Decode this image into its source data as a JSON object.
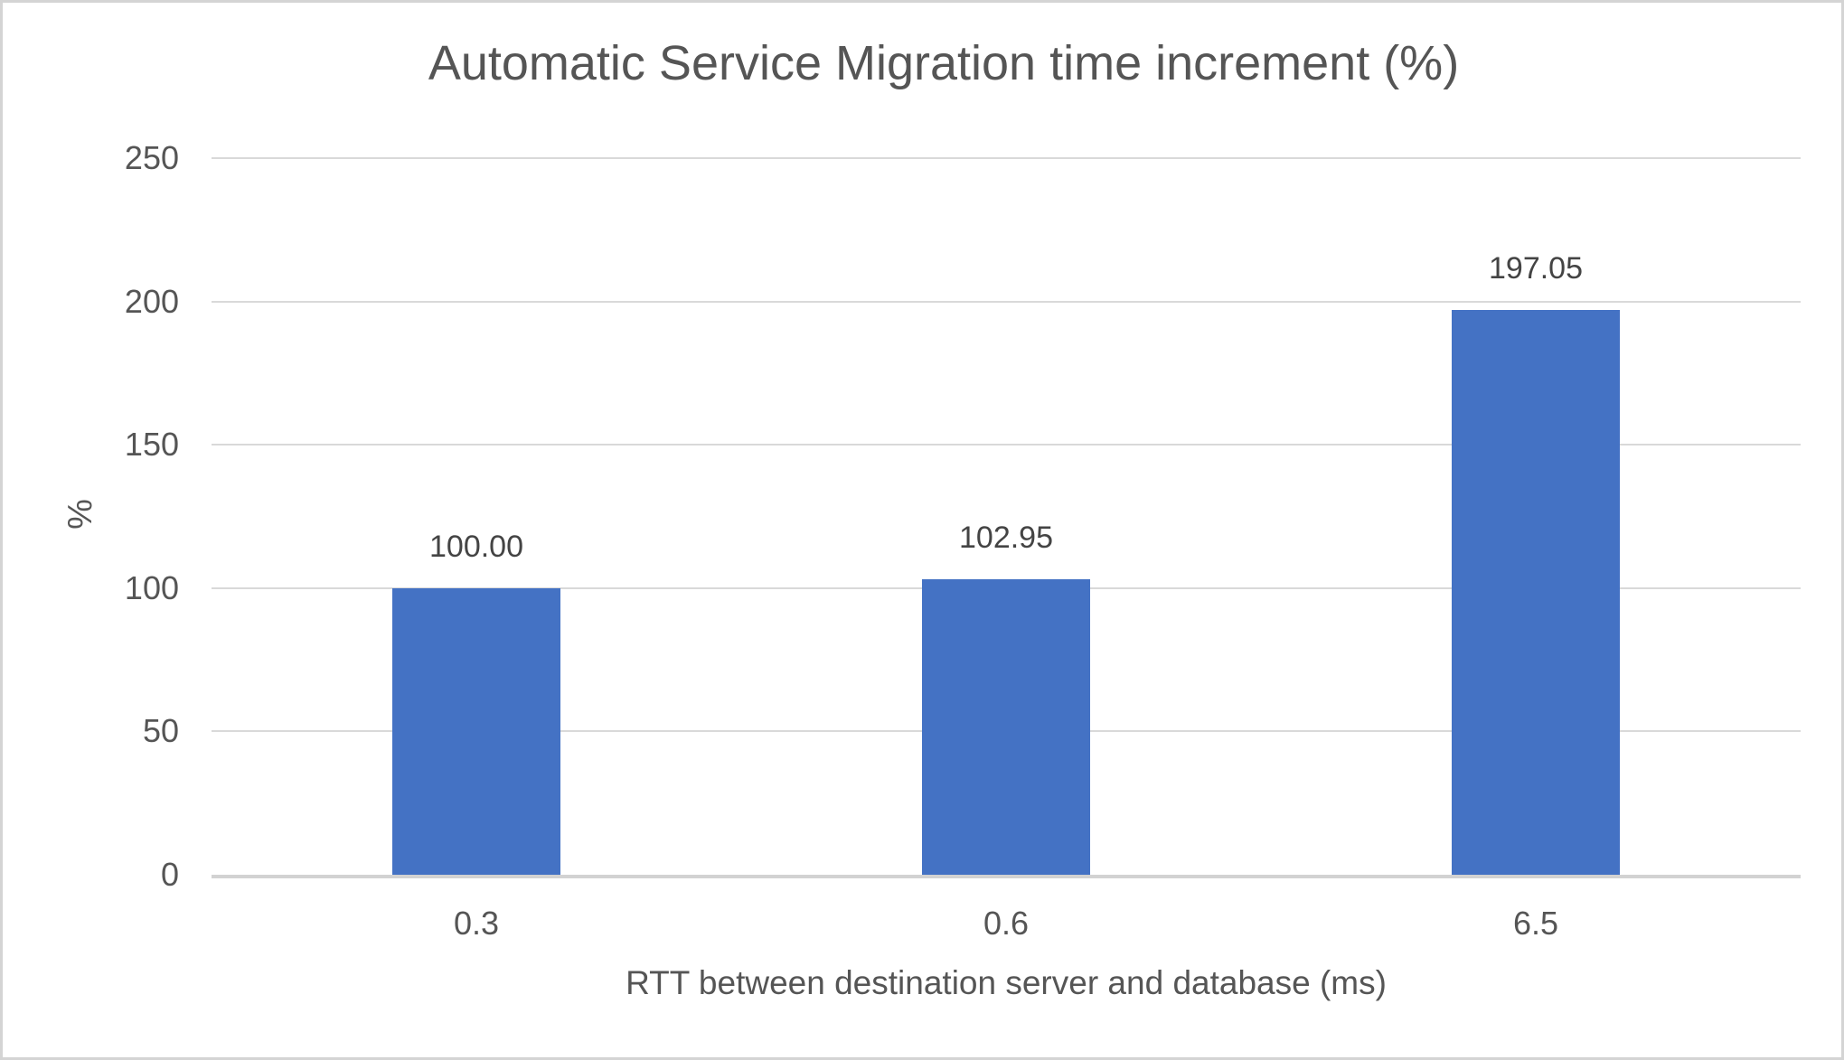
{
  "frame": {
    "border_color": "#d4d4d4",
    "background": "#ffffff"
  },
  "chart_data": {
    "type": "bar",
    "title": "Automatic Service Migration time increment (%)",
    "xlabel": "RTT between destination server and database (ms)",
    "ylabel": "%",
    "categories": [
      "0.3",
      "0.6",
      "6.5"
    ],
    "values": [
      100.0,
      102.95,
      197.05
    ],
    "data_labels": [
      "100.00",
      "102.95",
      "197.05"
    ],
    "ylim": [
      0,
      250
    ],
    "ytick_step": 50,
    "yticks": [
      0,
      50,
      100,
      150,
      200,
      250
    ],
    "grid": "horizontal",
    "legend": "none",
    "bar_color": "#4472c4",
    "gridline_color": "#d9d9d9",
    "axis_line_color": "#d2d2d2",
    "text_color": "#555555",
    "data_label_color": "#444444"
  }
}
